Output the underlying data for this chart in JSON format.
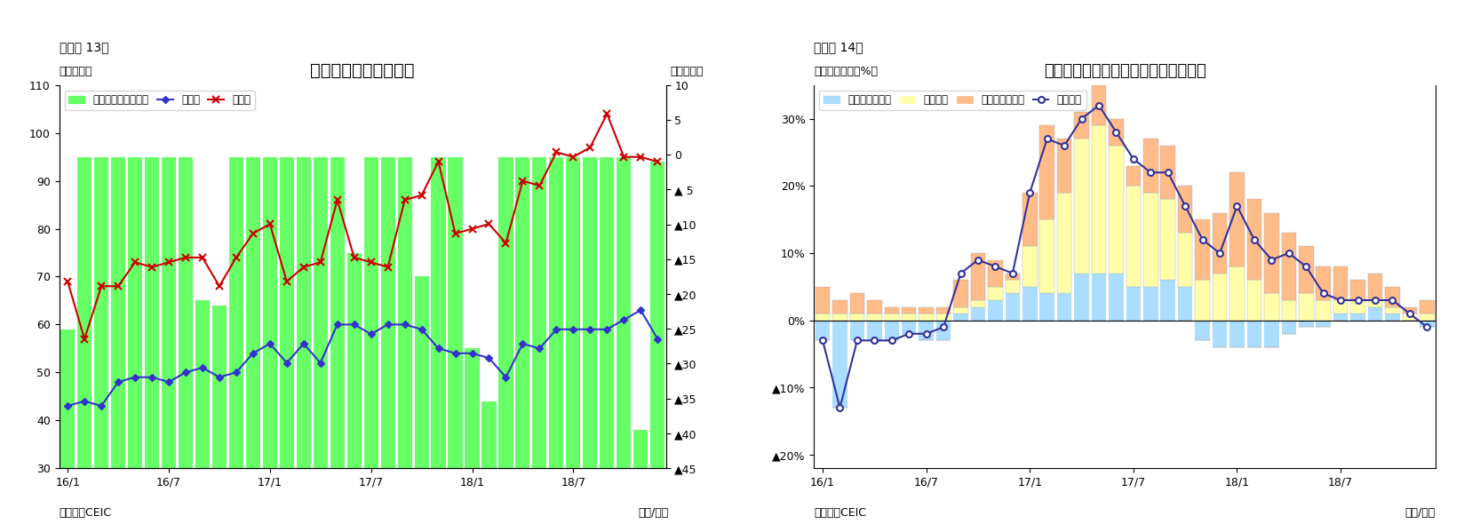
{
  "chart1": {
    "title": "フィリピンの貿易収支",
    "fig_label": "（図表 13）",
    "ylabel_left": "（億ドル）",
    "ylabel_right": "（億ドル）",
    "source": "（資料）CEIC",
    "date_label": "（年/月）",
    "xlabels": [
      "16/1",
      "16/7",
      "17/1",
      "17/7",
      "18/1",
      "18/7"
    ],
    "ylim_left": [
      30,
      110
    ],
    "ylim_right": [
      -45,
      10
    ],
    "yticks_left": [
      30,
      40,
      50,
      60,
      70,
      80,
      90,
      100,
      110
    ],
    "yticks_right_vals": [
      10,
      5,
      0,
      -5,
      -10,
      -15,
      -20,
      -25,
      -30,
      -35,
      -40,
      -45
    ],
    "yticks_right_labels": [
      "10",
      "5",
      "0",
      "▲ 5",
      "▲10",
      "▲15",
      "▲20",
      "▲25",
      "▲30",
      "▲35",
      "▲40",
      "▲45"
    ],
    "export_vals": [
      43,
      44,
      43,
      48,
      49,
      49,
      48,
      50,
      51,
      49,
      50,
      54,
      56,
      52,
      56,
      52,
      60,
      60,
      58,
      60,
      60,
      59,
      55,
      54,
      54,
      53,
      49,
      56,
      55,
      59,
      59,
      59,
      59,
      61,
      63,
      57
    ],
    "import_vals": [
      69,
      57,
      68,
      68,
      73,
      72,
      73,
      74,
      74,
      68,
      74,
      79,
      81,
      69,
      72,
      73,
      86,
      74,
      73,
      72,
      86,
      87,
      94,
      79,
      80,
      81,
      77,
      90,
      89,
      96,
      95,
      97,
      104,
      95,
      95,
      94
    ],
    "balance_bars": [
      59,
      95,
      95,
      95,
      95,
      95,
      95,
      95,
      65,
      64,
      95,
      95,
      95,
      95,
      95,
      95,
      95,
      75,
      95,
      95,
      95,
      70,
      95,
      95,
      55,
      44,
      95,
      95,
      95,
      95,
      95,
      95,
      95,
      95,
      38,
      94
    ],
    "bar_color": "#66FF66",
    "export_color": "#3333CC",
    "import_color": "#CC0000",
    "legend_trade": "貿易収支（右目盛）",
    "legend_export": "輸出額",
    "legend_import": "輸入額"
  },
  "chart2": {
    "title": "フィリピン　輸出の伸び率（品目別）",
    "fig_label": "（図表 14）",
    "ylabel_left": "（前年同期比、%）",
    "source": "（資料）CEIC",
    "date_label": "（年/月）",
    "xlabels": [
      "16/1",
      "16/7",
      "17/1",
      "17/7",
      "18/1",
      "18/7"
    ],
    "ylim": [
      -0.22,
      0.35
    ],
    "primary_fuel": [
      -0.03,
      -0.13,
      -0.03,
      -0.03,
      -0.03,
      -0.02,
      -0.03,
      -0.03,
      0.01,
      0.02,
      0.03,
      0.04,
      0.05,
      0.04,
      0.04,
      0.07,
      0.07,
      0.07,
      0.05,
      0.05,
      0.06,
      0.05,
      -0.03,
      -0.04,
      -0.04,
      -0.04,
      -0.04,
      -0.02,
      -0.01,
      -0.01,
      0.01,
      0.01,
      0.02,
      0.01,
      0.0,
      -0.01
    ],
    "electronics": [
      0.01,
      0.01,
      0.01,
      0.01,
      0.01,
      0.01,
      0.01,
      0.01,
      0.01,
      0.01,
      0.02,
      0.02,
      0.06,
      0.11,
      0.15,
      0.2,
      0.22,
      0.19,
      0.15,
      0.14,
      0.12,
      0.08,
      0.06,
      0.07,
      0.08,
      0.06,
      0.04,
      0.03,
      0.04,
      0.03,
      0.02,
      0.02,
      0.01,
      0.01,
      0.01,
      0.01
    ],
    "other_products": [
      0.04,
      0.02,
      0.03,
      0.02,
      0.01,
      0.01,
      0.01,
      0.01,
      0.04,
      0.07,
      0.04,
      0.01,
      0.08,
      0.14,
      0.08,
      0.04,
      0.06,
      0.04,
      0.03,
      0.08,
      0.08,
      0.07,
      0.09,
      0.09,
      0.14,
      0.12,
      0.12,
      0.1,
      0.07,
      0.05,
      0.05,
      0.03,
      0.04,
      0.03,
      0.01,
      0.02
    ],
    "total_export": [
      -0.03,
      -0.13,
      -0.03,
      -0.03,
      -0.03,
      -0.02,
      -0.02,
      -0.01,
      0.07,
      0.09,
      0.08,
      0.07,
      0.19,
      0.27,
      0.26,
      0.3,
      0.32,
      0.28,
      0.24,
      0.22,
      0.22,
      0.17,
      0.12,
      0.1,
      0.17,
      0.12,
      0.09,
      0.1,
      0.08,
      0.04,
      0.03,
      0.03,
      0.03,
      0.03,
      0.01,
      -0.01
    ],
    "primary_color": "#AADDFF",
    "electronics_color": "#FFFFAA",
    "other_color": "#FFBB88",
    "total_color": "#333399",
    "legend_primary": "一次産品・燃料",
    "legend_electronics": "電子製品",
    "legend_other": "その他製品など",
    "legend_total": "輸出合計"
  }
}
